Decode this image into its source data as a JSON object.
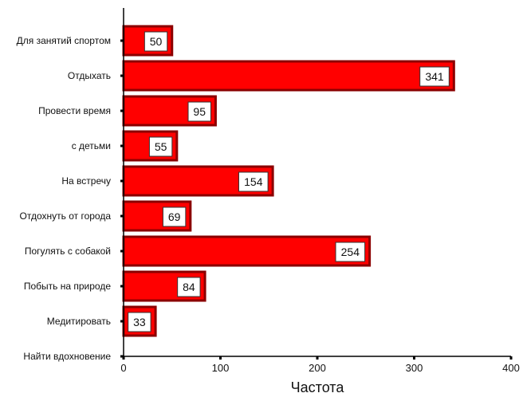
{
  "chart_data": {
    "type": "bar",
    "orientation": "horizontal",
    "categories": [
      "Для занятий спортом",
      "Отдыхать",
      "Провести время",
      "с детьми",
      "На встречу",
      "Отдохнуть от города",
      "Погулять с собакой",
      "Побыть на природе",
      "Медитировать",
      "Найти вдохновение"
    ],
    "values": [
      50,
      341,
      95,
      55,
      154,
      69,
      254,
      84,
      33,
      null
    ],
    "value_labels": [
      "50",
      "341",
      "95",
      "55",
      "154",
      "69",
      "254",
      "84",
      "33",
      ""
    ],
    "xlabel": "Частота",
    "ylabel": "",
    "xlim": [
      0,
      400
    ],
    "xticks": [
      0,
      100,
      200,
      300,
      400
    ],
    "xtick_labels": [
      "0",
      "100",
      "200",
      "300",
      "400"
    ],
    "grid": false,
    "colors": {
      "bar_fill": "#ff0000",
      "bar_stroke": "#8b0000",
      "label_box_fill": "#ffffff",
      "axis": "#000000"
    }
  }
}
